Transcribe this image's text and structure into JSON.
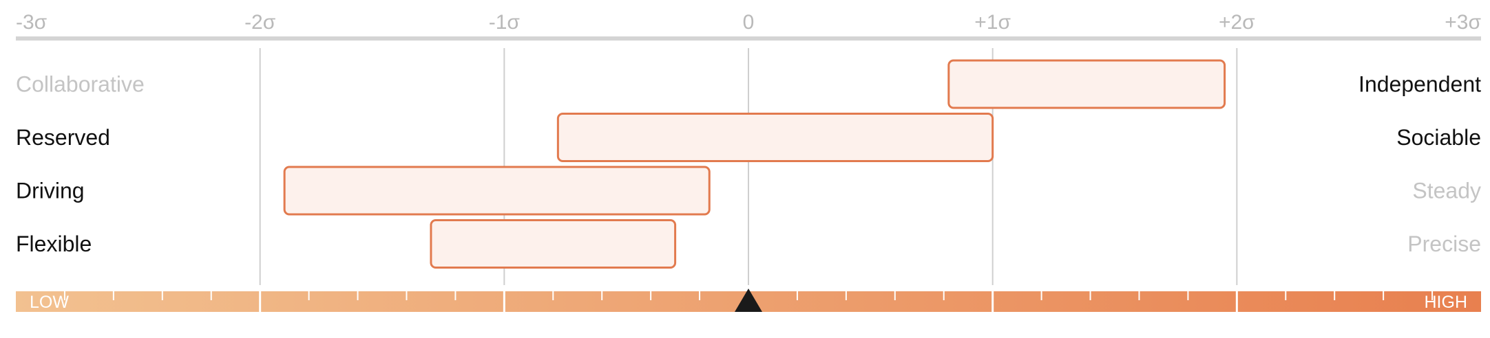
{
  "chart_data": {
    "type": "range-bar",
    "x_axis": {
      "range": [
        -3,
        3
      ],
      "ticks": [
        -3,
        -2,
        -1,
        0,
        1,
        2,
        3
      ],
      "tick_labels": [
        "-3σ",
        "-2σ",
        "-1σ",
        "0",
        "+1σ",
        "+2σ",
        "+3σ"
      ]
    },
    "rows": [
      {
        "left_label": "Collaborative",
        "right_label": "Independent",
        "range": [
          0.82,
          1.95
        ],
        "emphasis": "right"
      },
      {
        "left_label": "Reserved",
        "right_label": "Sociable",
        "range": [
          -0.78,
          1.0
        ],
        "emphasis": "both"
      },
      {
        "left_label": "Driving",
        "right_label": "Steady",
        "range": [
          -1.9,
          -0.16
        ],
        "emphasis": "left"
      },
      {
        "left_label": "Flexible",
        "right_label": "Precise",
        "range": [
          -1.3,
          -0.3
        ],
        "emphasis": "left"
      }
    ],
    "scale_bar": {
      "low_label": "LOW",
      "high_label": "HIGH",
      "marker_value": 0,
      "minor_ticks_per_sigma": 5
    },
    "grid": true
  },
  "colors": {
    "bar_fill": "#fdf1ec",
    "bar_stroke": "#e27a4e",
    "gradient_start": "#f2c190",
    "gradient_end": "#e8804f",
    "axis_line": "#d4d4d4",
    "gridline": "#cfcfcf",
    "tick_text": "#b9b9b9",
    "label_active": "#111111",
    "label_muted": "#c4c4c4",
    "marker": "#1a1a1a"
  }
}
